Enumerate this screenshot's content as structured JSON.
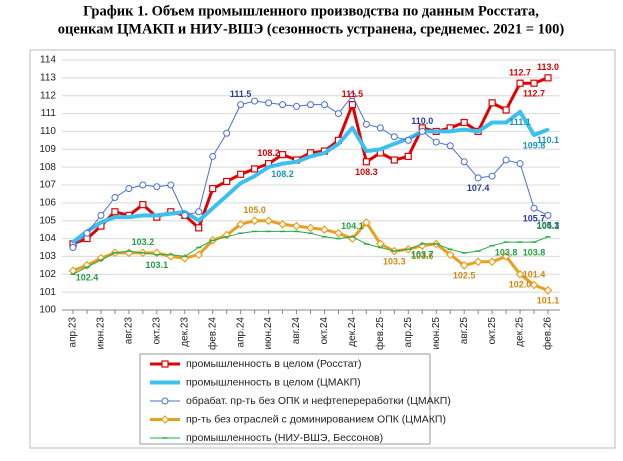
{
  "chart_data": {
    "type": "line",
    "title": [
      "График 1. Объем промышленного производства по данным Росстата,",
      "оценкам ЦМАКП и НИУ-ВШЭ (сезонность устранена, среднемес. 2021 = 100)"
    ],
    "categories": [
      "апр.23",
      null,
      "июн.23",
      null,
      "авг.23",
      null,
      "окт.23",
      null,
      "дек.23",
      null,
      "фев.24",
      null,
      "апр.24",
      null,
      "июн.24",
      null,
      "авг.24",
      null,
      "окт.24",
      null,
      "дек.24",
      null,
      "фев.25",
      null,
      "апр.25",
      null,
      "июн.25",
      null,
      "авг.25",
      null,
      "окт.25",
      null,
      "дек.25",
      null,
      "фев.26"
    ],
    "ylim": [
      100,
      114
    ],
    "yticks": [
      100,
      101,
      102,
      103,
      104,
      105,
      106,
      107,
      108,
      109,
      110,
      111,
      112,
      113,
      114
    ],
    "grid": true,
    "series": [
      {
        "name": "промышленность в целом (Росстат)",
        "color": "#e00000",
        "label_color": "#e00000",
        "width": 3,
        "marker": "square",
        "values": [
          103.7,
          104.0,
          104.7,
          105.5,
          105.3,
          105.9,
          105.2,
          105.5,
          105.3,
          104.6,
          106.8,
          107.2,
          107.6,
          107.9,
          108.2,
          108.7,
          108.4,
          108.8,
          108.9,
          109.5,
          111.5,
          108.3,
          108.8,
          108.4,
          108.6,
          110.2,
          110.0,
          110.2,
          110.5,
          110.0,
          111.6,
          111.2,
          112.7,
          112.7,
          113.0
        ],
        "value_labels": [
          null,
          null,
          null,
          null,
          null,
          null,
          null,
          null,
          null,
          null,
          null,
          null,
          null,
          null,
          "108.2",
          null,
          null,
          null,
          null,
          null,
          "111.5",
          "108.3",
          null,
          null,
          null,
          null,
          null,
          null,
          null,
          null,
          null,
          null,
          "112.7",
          "112.7",
          "113.0"
        ]
      },
      {
        "name": "промышленность в целом (ЦМАКП)",
        "color": "#3cc0f0",
        "label_color": "#1e90c0",
        "width": 4,
        "marker": "none",
        "values": [
          103.8,
          104.4,
          104.9,
          105.2,
          105.2,
          105.3,
          105.3,
          105.4,
          105.5,
          105.0,
          105.7,
          106.4,
          107.1,
          107.5,
          108.0,
          108.2,
          108.3,
          108.6,
          108.8,
          109.3,
          110.2,
          108.9,
          109.0,
          109.3,
          109.6,
          110.0,
          110.0,
          110.0,
          110.1,
          110.0,
          110.5,
          110.5,
          111.1,
          109.8,
          110.1
        ],
        "value_labels": [
          null,
          null,
          null,
          null,
          null,
          null,
          null,
          null,
          null,
          null,
          null,
          null,
          null,
          null,
          null,
          "108.2",
          null,
          null,
          null,
          null,
          null,
          null,
          null,
          null,
          null,
          null,
          null,
          null,
          null,
          null,
          null,
          null,
          "111.1",
          "109.8",
          "110.1"
        ]
      },
      {
        "name": "обрабат. пр-ть без ОПК и нефтепереработки (ЦМАКП)",
        "color": "#4a6fd0",
        "label_color": "#2a3aa0",
        "width": 1,
        "marker": "circle",
        "values": [
          103.5,
          104.3,
          105.3,
          106.3,
          106.8,
          107.0,
          106.9,
          107.0,
          105.3,
          105.5,
          108.6,
          109.9,
          111.5,
          111.7,
          111.6,
          111.5,
          111.4,
          111.5,
          111.5,
          111.0,
          112.0,
          110.4,
          110.2,
          109.7,
          109.5,
          110.0,
          109.4,
          109.2,
          108.3,
          107.4,
          107.5,
          108.4,
          108.2,
          105.7,
          105.3
        ],
        "value_labels": [
          null,
          null,
          null,
          null,
          null,
          null,
          null,
          null,
          null,
          null,
          null,
          null,
          "111.5",
          null,
          null,
          null,
          null,
          null,
          null,
          null,
          null,
          null,
          null,
          null,
          null,
          "110.0",
          null,
          null,
          null,
          "107.4",
          null,
          null,
          null,
          "105.7",
          "105.3"
        ]
      },
      {
        "name": "пр-ть без отраслей с доминированием ОПК (ЦМАКП)",
        "color": "#e8a020",
        "label_color": "#d08a10",
        "width": 3,
        "marker": "diamond",
        "values": [
          102.2,
          102.5,
          102.9,
          103.2,
          103.2,
          103.2,
          103.2,
          103.0,
          102.9,
          103.1,
          103.9,
          104.2,
          104.8,
          105.0,
          105.0,
          104.8,
          104.7,
          104.6,
          104.5,
          104.3,
          104.0,
          104.9,
          103.7,
          103.3,
          103.4,
          103.6,
          103.7,
          103.1,
          102.5,
          102.7,
          102.7,
          103.0,
          102.0,
          101.4,
          101.1
        ],
        "value_labels": [
          null,
          null,
          null,
          null,
          null,
          null,
          null,
          null,
          null,
          null,
          null,
          null,
          null,
          "105.0",
          null,
          null,
          null,
          null,
          null,
          null,
          null,
          null,
          null,
          "103.3",
          null,
          "103.6",
          null,
          null,
          "102.5",
          null,
          null,
          null,
          "102.0",
          "101.4",
          "101.1"
        ]
      },
      {
        "name": "промышленность (НИУ-ВШЭ, Бессонов)",
        "color": "#2aaa4a",
        "label_color": "#20a040",
        "width": 1,
        "marker": "dash",
        "values": [
          102.0,
          102.4,
          102.8,
          103.2,
          103.3,
          103.2,
          103.1,
          103.1,
          103.0,
          103.5,
          103.9,
          104.1,
          104.3,
          104.4,
          104.4,
          104.4,
          104.4,
          104.3,
          104.1,
          104.0,
          104.1,
          103.7,
          103.5,
          103.3,
          103.4,
          103.7,
          103.7,
          103.4,
          103.2,
          103.3,
          103.6,
          103.8,
          103.8,
          103.8,
          104.1
        ],
        "value_labels": [
          null,
          "102.4",
          null,
          null,
          null,
          "103.2",
          "103.1",
          null,
          null,
          null,
          null,
          null,
          null,
          null,
          null,
          null,
          null,
          null,
          null,
          null,
          "104.1",
          null,
          null,
          null,
          null,
          "103.7",
          null,
          null,
          null,
          null,
          null,
          "103.8",
          null,
          "103.8",
          "104.1"
        ]
      }
    ]
  }
}
